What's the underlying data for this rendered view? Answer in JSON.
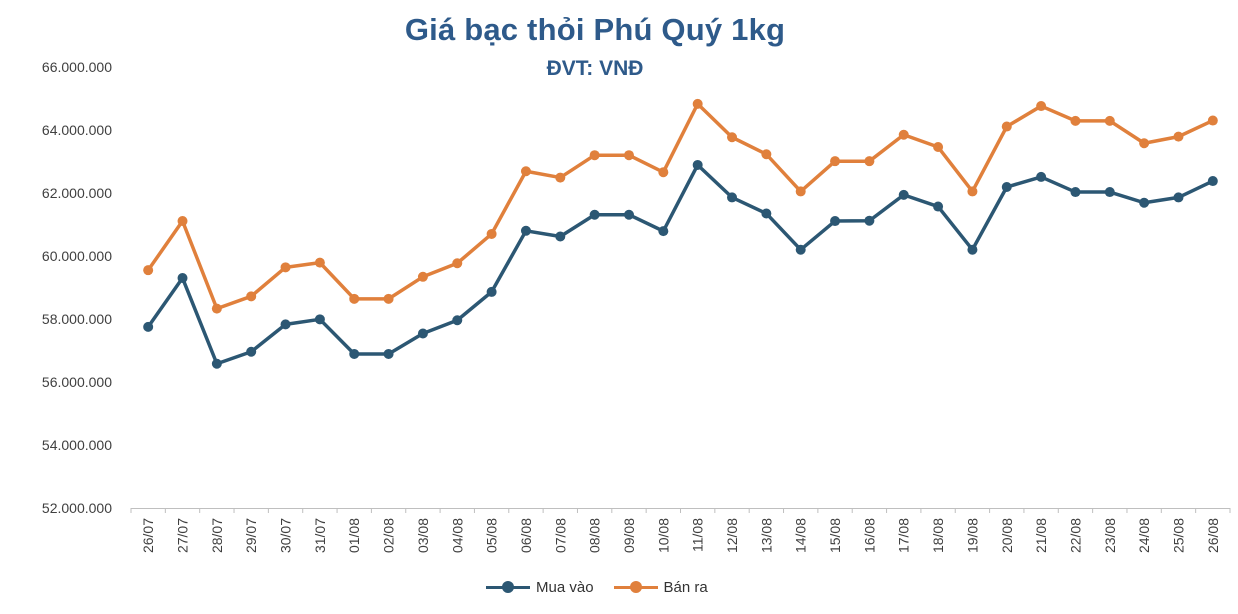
{
  "chart_data": {
    "type": "line",
    "title": "Giá bạc thỏi Phú Quý 1kg",
    "subtitle": "ĐVT: VNĐ",
    "xlabel": "",
    "ylabel": "",
    "ylim": [
      52000000,
      66000000
    ],
    "yticks": [
      52000000,
      54000000,
      56000000,
      58000000,
      60000000,
      62000000,
      64000000,
      66000000
    ],
    "ytick_labels": [
      "52.000.000",
      "54.000.000",
      "56.000.000",
      "58.000.000",
      "60.000.000",
      "62.000.000",
      "64.000.000",
      "66.000.000"
    ],
    "categories": [
      "26/07",
      "27/07",
      "28/07",
      "29/07",
      "30/07",
      "31/07",
      "01/08",
      "02/08",
      "03/08",
      "04/08",
      "05/08",
      "06/08",
      "07/08",
      "08/08",
      "09/08",
      "10/08",
      "11/08",
      "12/08",
      "13/08",
      "14/08",
      "15/08",
      "16/08",
      "17/08",
      "18/08",
      "19/08",
      "20/08",
      "21/08",
      "22/08",
      "23/08",
      "24/08",
      "25/08",
      "26/08"
    ],
    "grid": false,
    "legend_position": "bottom",
    "series": [
      {
        "name": "Mua vào",
        "color": "#2c5773",
        "values": [
          57750000,
          59300000,
          56580000,
          56960000,
          57830000,
          57990000,
          56890000,
          56890000,
          57540000,
          57960000,
          58860000,
          60800000,
          60620000,
          61310000,
          61310000,
          60790000,
          62890000,
          61860000,
          61350000,
          60200000,
          61110000,
          61120000,
          61940000,
          61570000,
          60200000,
          62190000,
          62510000,
          62030000,
          62030000,
          61690000,
          61860000,
          62380000
        ]
      },
      {
        "name": "Bán ra",
        "color": "#e0803c",
        "values": [
          59550000,
          61110000,
          58330000,
          58720000,
          59640000,
          59790000,
          58640000,
          58640000,
          59340000,
          59770000,
          60700000,
          62690000,
          62490000,
          63200000,
          63200000,
          62660000,
          64830000,
          63770000,
          63230000,
          62050000,
          63010000,
          63010000,
          63850000,
          63460000,
          62050000,
          64110000,
          64760000,
          64290000,
          64290000,
          63580000,
          63790000,
          64300000
        ]
      }
    ]
  }
}
